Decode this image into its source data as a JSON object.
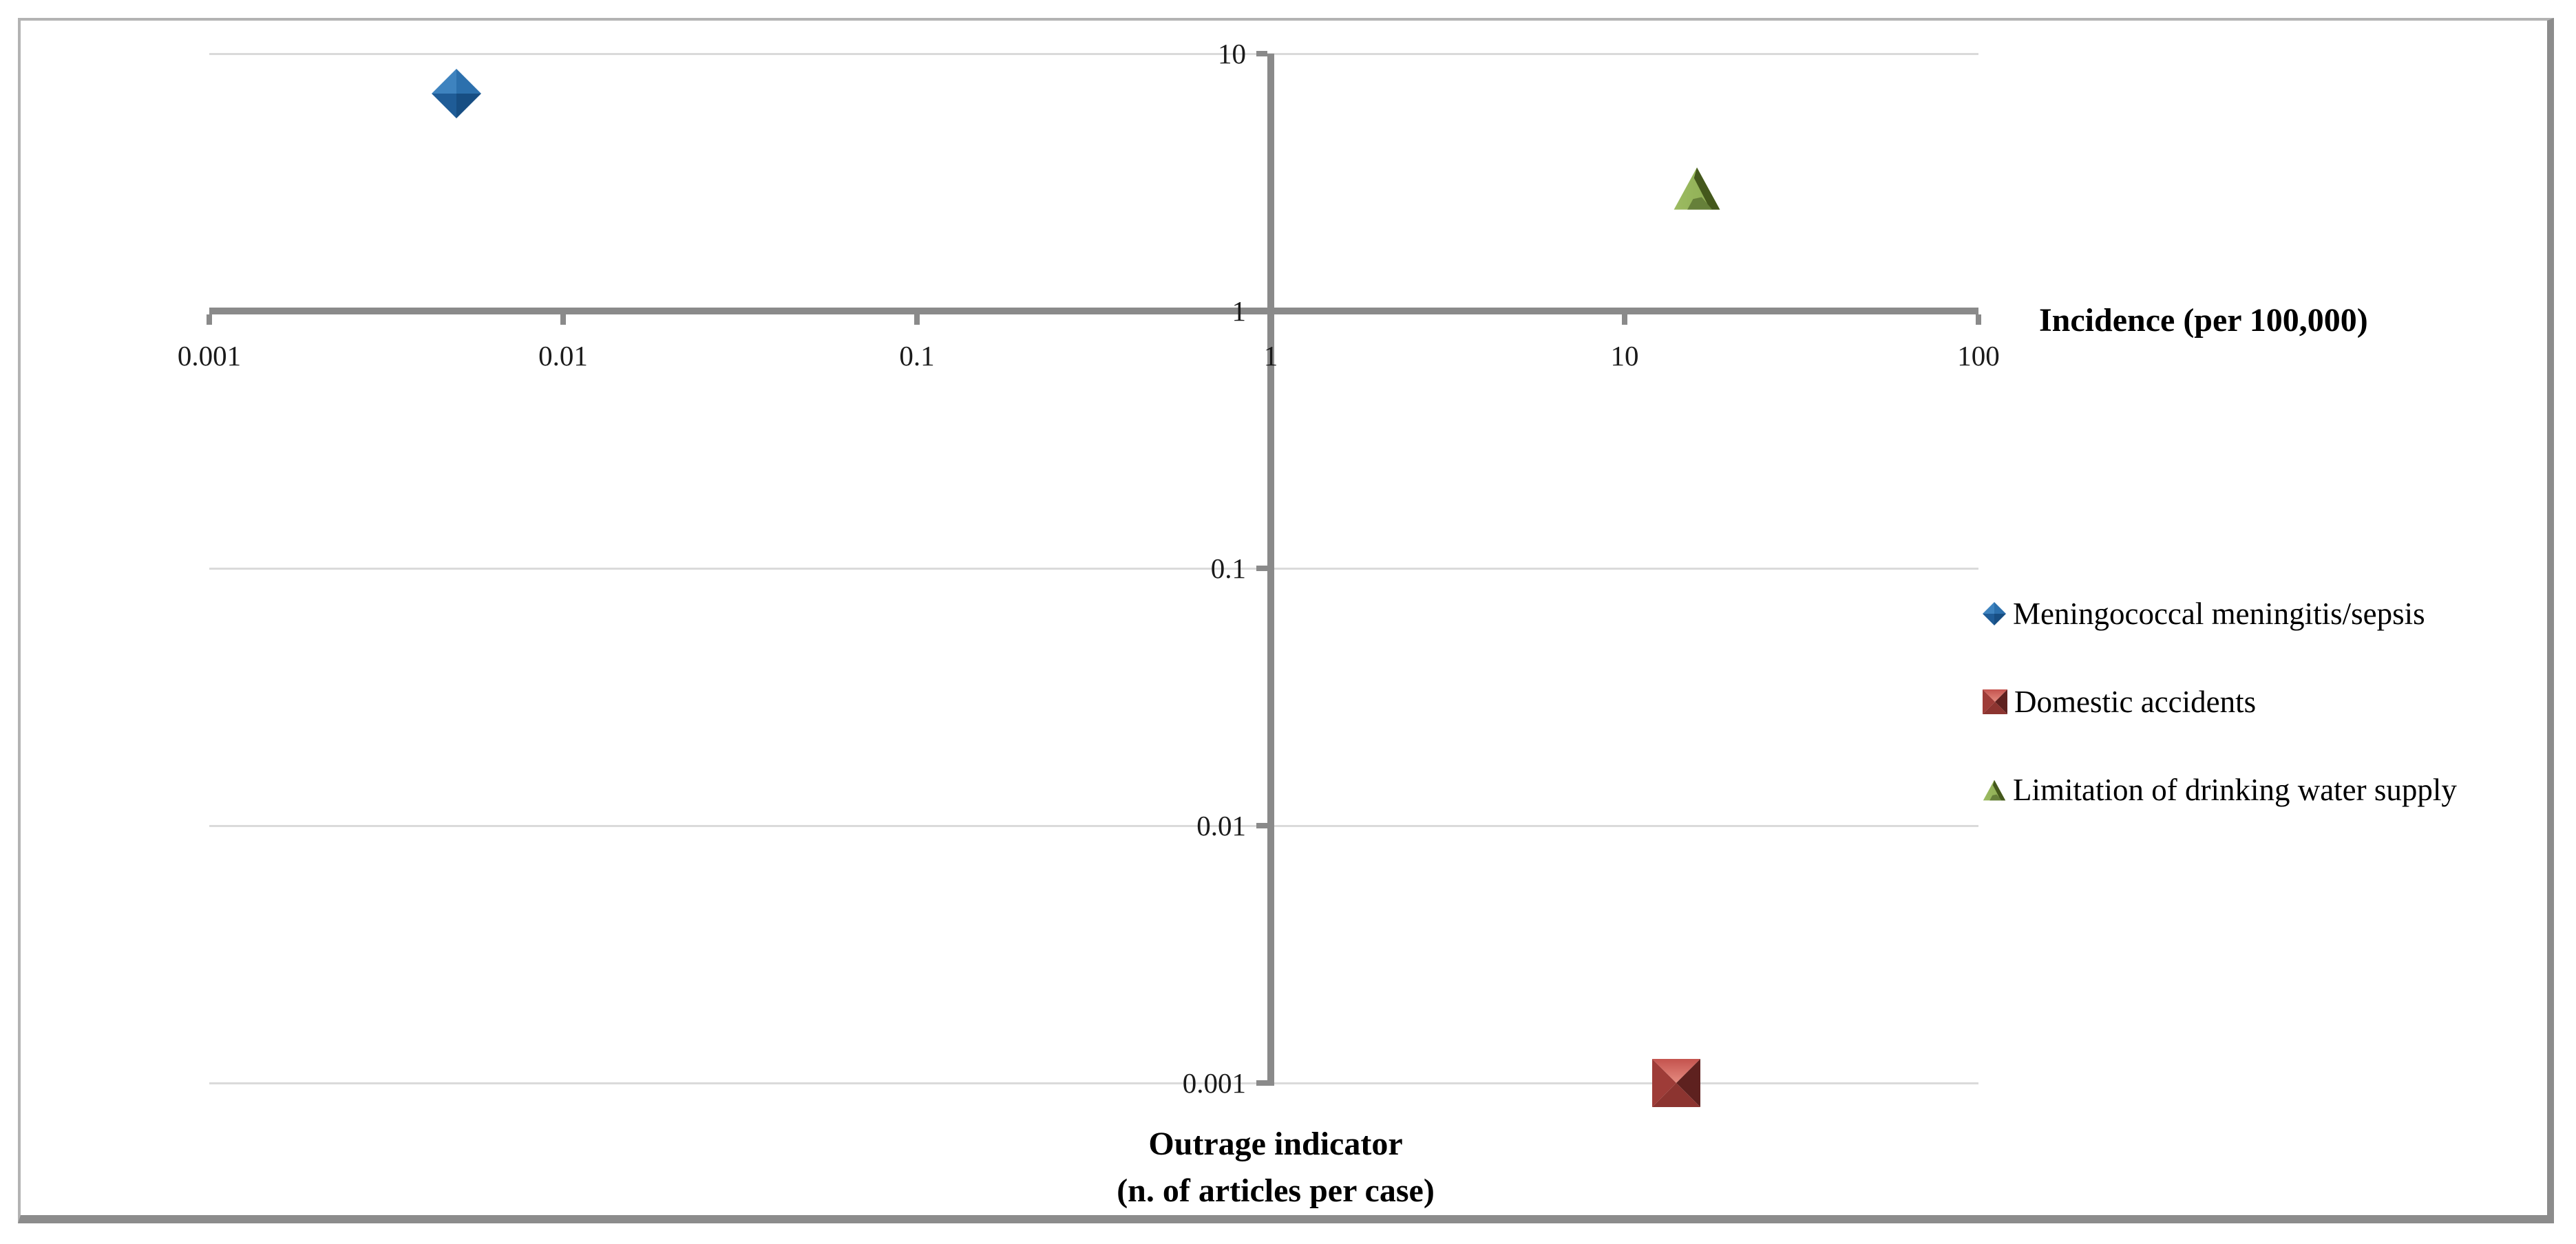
{
  "figure": {
    "background": "#FFFFFF",
    "border_light": "#B3B3B3",
    "border_dark": "#8C8C8C"
  },
  "axes": {
    "x_title": "Incidence (per 100,000)",
    "y_title_line1": "Outrage indicator",
    "y_title_line2": "(n. of articles per case)",
    "axis_color": "#8A8A8A",
    "gridline_color": "#DADADA",
    "tick_label_color": "#1A1A1A",
    "title_color": "#000000"
  },
  "legend": {
    "position": "right"
  },
  "chart_data": {
    "type": "scatter",
    "title": "",
    "xlabel": "Incidence (per 100,000)",
    "ylabel": "Outrage indicator (n. of articles per case)",
    "x_scale": "log",
    "y_scale": "log",
    "xlim": [
      0.001,
      100
    ],
    "ylim": [
      0.001,
      10
    ],
    "x_axis_crosses_y_at": 1,
    "y_axis_crosses_x_at": 1,
    "grid": "horizontal-only",
    "legend_position": "right",
    "x_ticks": [
      {
        "label": "0.001",
        "value": 0.001
      },
      {
        "label": "0.01",
        "value": 0.01
      },
      {
        "label": "0.1",
        "value": 0.1
      },
      {
        "label": "1",
        "value": 1
      },
      {
        "label": "10",
        "value": 10
      },
      {
        "label": "100",
        "value": 100
      }
    ],
    "y_ticks": [
      {
        "label": "10",
        "value": 10
      },
      {
        "label": "1",
        "value": 1
      },
      {
        "label": "0.1",
        "value": 0.1
      },
      {
        "label": "0.01",
        "value": 0.01
      },
      {
        "label": "0.001",
        "value": 0.001
      }
    ],
    "series": [
      {
        "name": "Meningococcal meningitis/sepsis",
        "marker": "diamond",
        "color": "#2E74B5",
        "facets": {
          "nw": "#3E83BF",
          "ne": "#2C70AD",
          "sw": "#1F5C97",
          "se": "#174E83"
        },
        "points": [
          {
            "x": 0.005,
            "y": 7
          }
        ]
      },
      {
        "name": "Domestic accidents",
        "marker": "square",
        "color": "#C0504D",
        "facets": {
          "top": "#C4534E",
          "top_sheen": "#E58B80",
          "left": "#9E3C38",
          "right": "#5E211F",
          "bottom": "#8C3430"
        },
        "points": [
          {
            "x": 14,
            "y": 0.001
          }
        ]
      },
      {
        "name": "Limitation of drinking water supply",
        "marker": "triangle",
        "color": "#77983B",
        "facets": {
          "face": "#8CAC51",
          "face_light": "#9CBB62",
          "edge": "#44581C",
          "shadow": "#66803A"
        },
        "points": [
          {
            "x": 16,
            "y": 3
          }
        ]
      }
    ]
  }
}
